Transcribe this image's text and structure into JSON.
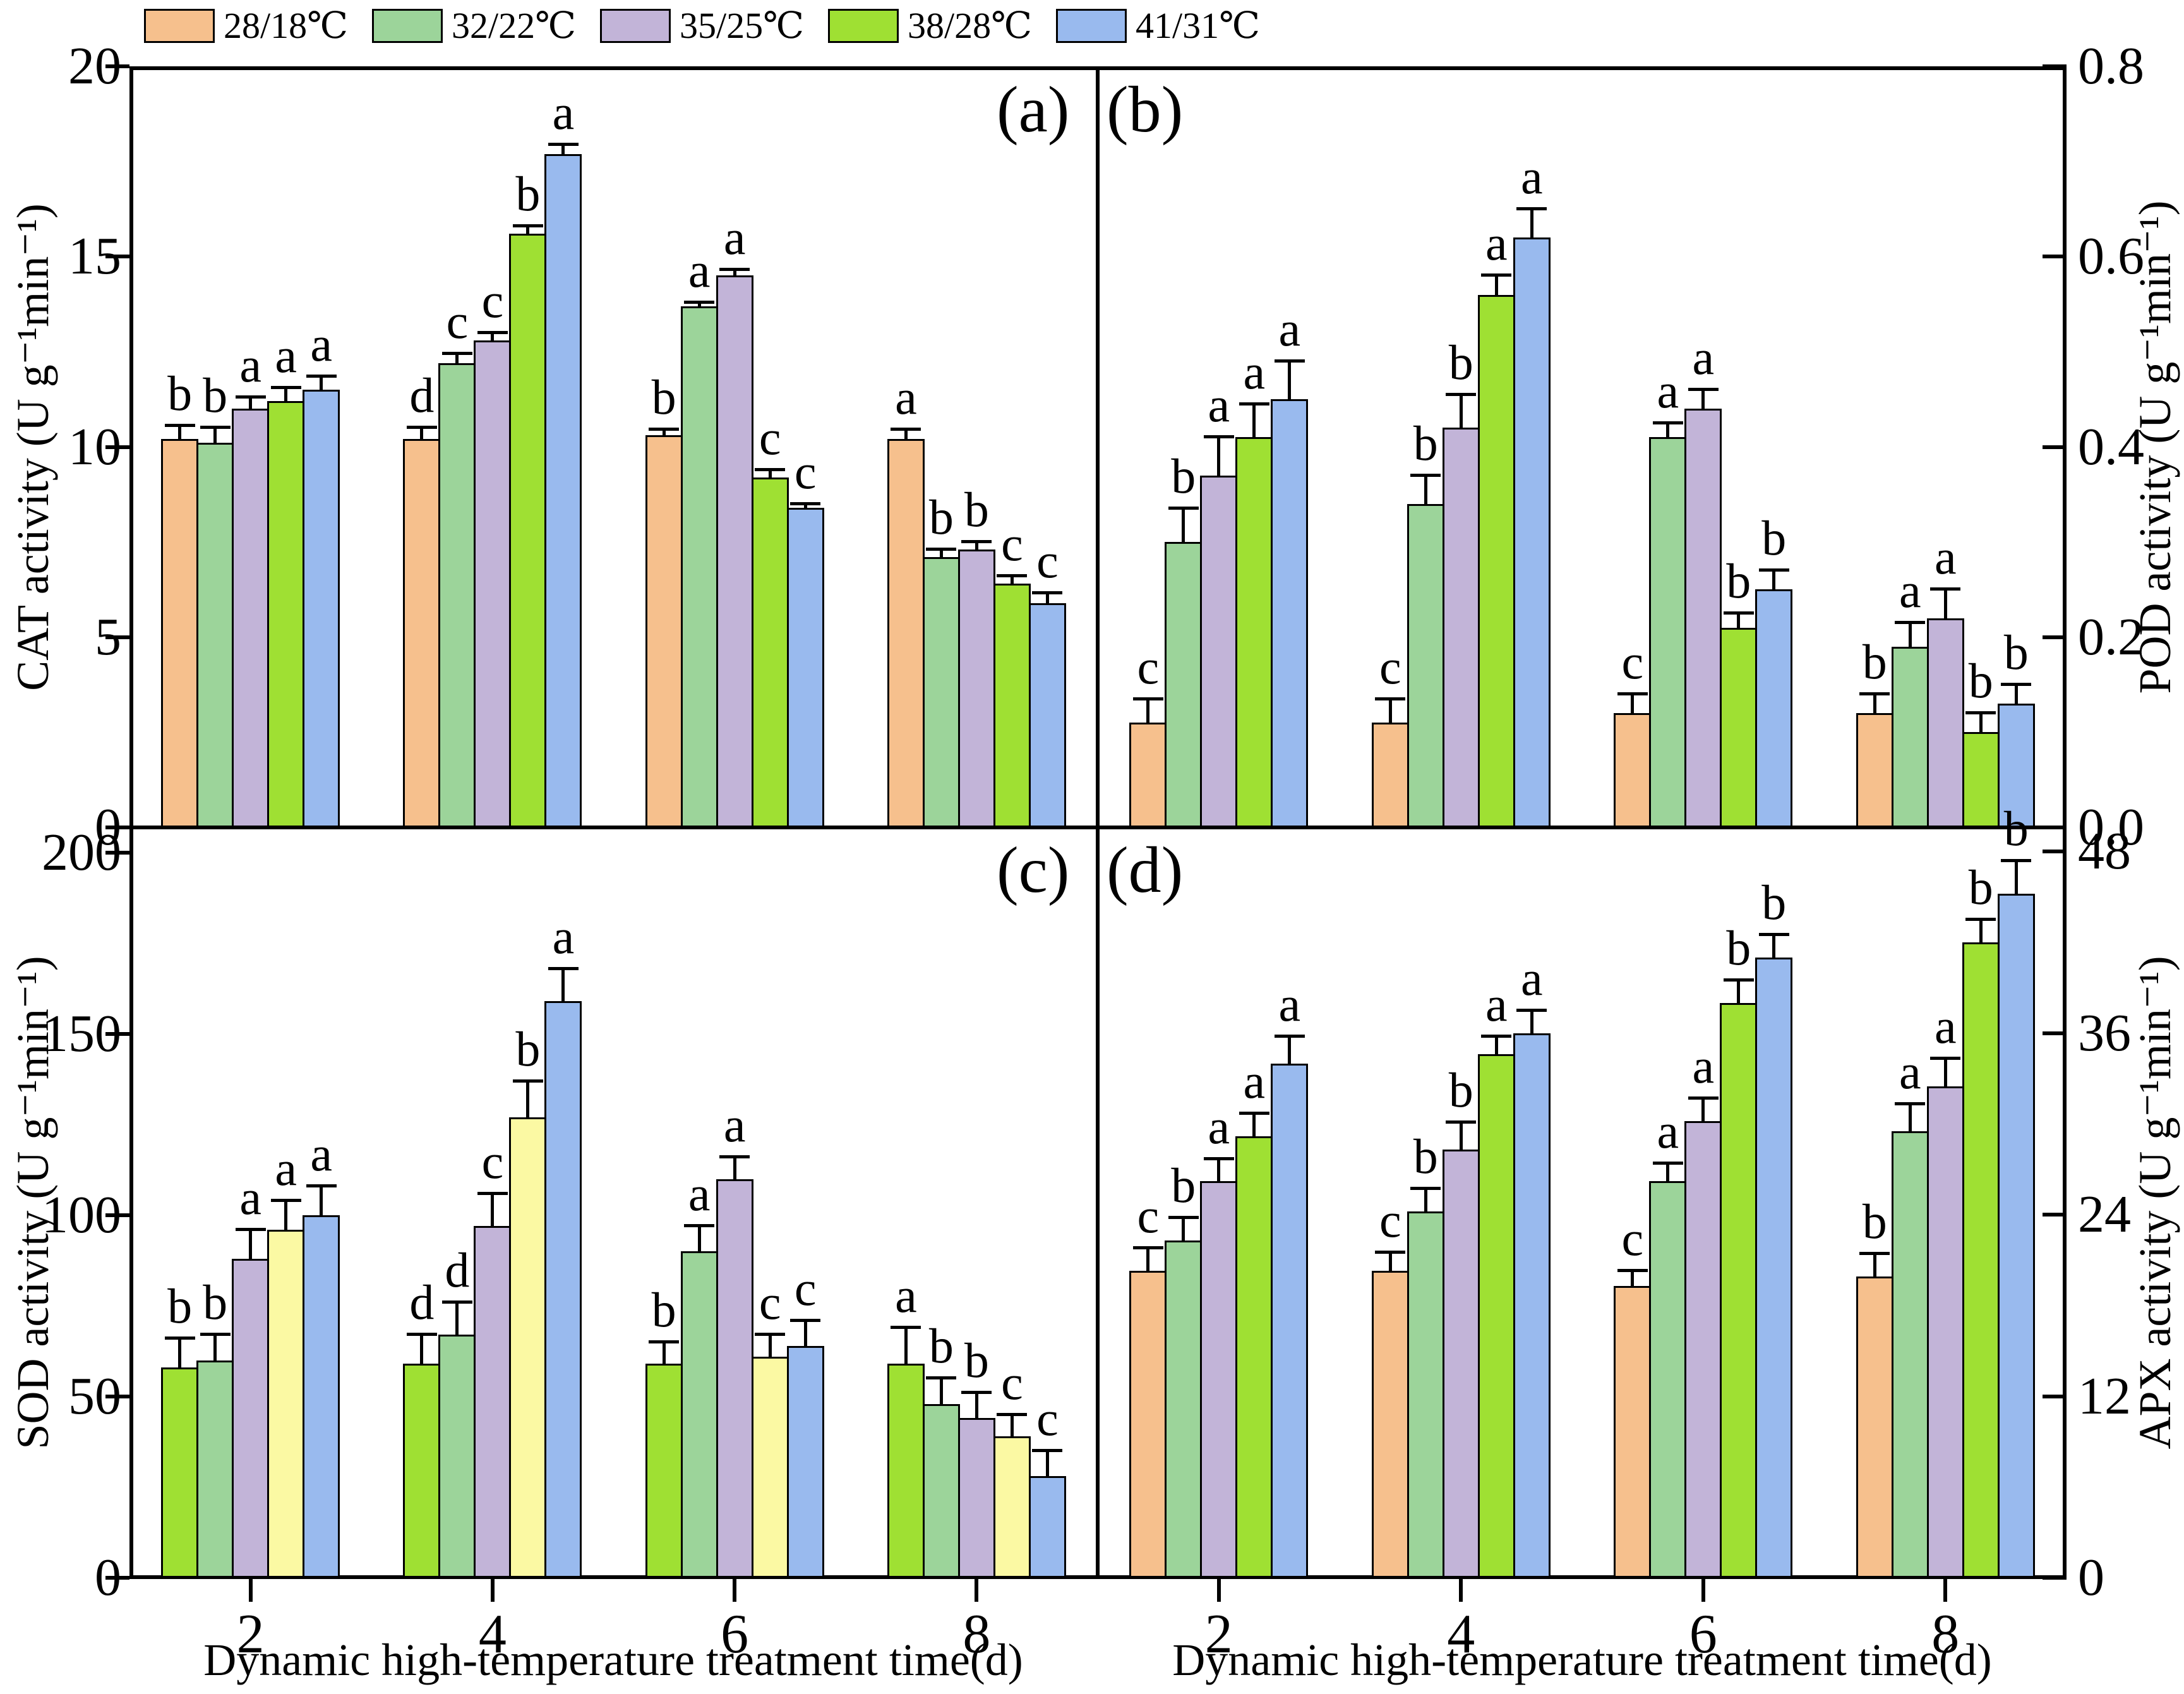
{
  "figure": {
    "x_axis_title": "Dynamic high-temperature treatment time(d)",
    "x_tick_labels": [
      "2",
      "4",
      "6",
      "8"
    ],
    "background_color": "#FFFFFF",
    "frame_color": "#000000"
  },
  "legend": {
    "position": "top-left",
    "items": [
      {
        "label": "28/18℃",
        "color": "#F6C08D"
      },
      {
        "label": "32/22℃",
        "color": "#9CD49A"
      },
      {
        "label": "35/25℃",
        "color": "#C2B4D8"
      },
      {
        "label": "38/28℃",
        "color": "#9FE033"
      },
      {
        "label": "41/31℃",
        "color": "#99BAEE"
      }
    ]
  },
  "chart_data": [
    {
      "type": "bar",
      "panel": "a",
      "title": "(a)",
      "ylabel": "CAT activity (U g⁻¹min⁻¹)",
      "xlabel": "Dynamic high-temperature treatment time(d)",
      "axis_side": "left",
      "ylim": [
        0,
        20
      ],
      "draw_max": 20,
      "yticks": [
        0,
        5,
        10,
        15,
        20
      ],
      "ytick_labels": [
        "0",
        "5",
        "10",
        "15",
        "20"
      ],
      "categories": [
        "2",
        "4",
        "6",
        "8"
      ],
      "grid": false,
      "series": [
        {
          "name": "28/18℃",
          "color": "#F6C08D",
          "values": [
            10.2,
            10.2,
            10.3,
            10.2
          ],
          "errors": [
            0.35,
            0.3,
            0.15,
            0.25
          ],
          "letters": [
            "b",
            "d",
            "b",
            "a"
          ]
        },
        {
          "name": "32/22℃",
          "color": "#9CD49A",
          "values": [
            10.1,
            12.2,
            13.7,
            7.1
          ],
          "errors": [
            0.4,
            0.25,
            0.1,
            0.2
          ],
          "letters": [
            "b",
            "c",
            "a",
            "b"
          ]
        },
        {
          "name": "35/25℃",
          "color": "#C2B4D8",
          "values": [
            11.0,
            12.8,
            14.5,
            7.3
          ],
          "errors": [
            0.3,
            0.2,
            0.15,
            0.2
          ],
          "letters": [
            "a",
            "c",
            "a",
            "b"
          ]
        },
        {
          "name": "38/28℃",
          "color": "#9FE033",
          "values": [
            11.2,
            15.6,
            9.2,
            6.4
          ],
          "errors": [
            0.35,
            0.2,
            0.2,
            0.2
          ],
          "letters": [
            "a",
            "b",
            "c",
            "c"
          ]
        },
        {
          "name": "41/31℃",
          "color": "#99BAEE",
          "values": [
            11.5,
            17.7,
            8.4,
            5.9
          ],
          "errors": [
            0.35,
            0.25,
            0.1,
            0.25
          ],
          "letters": [
            "a",
            "a",
            "c",
            "c"
          ]
        }
      ]
    },
    {
      "type": "bar",
      "panel": "b",
      "title": "(b)",
      "ylabel": "POD activity (U g⁻¹min⁻¹)",
      "xlabel": "Dynamic high-temperature treatment time(d)",
      "axis_side": "right",
      "ylim": [
        0,
        0.8
      ],
      "draw_max": 0.8,
      "yticks": [
        0,
        0.2,
        0.4,
        0.6,
        0.8
      ],
      "ytick_labels": [
        "0.0",
        "0.2",
        "0.4",
        "0.6",
        "0.8"
      ],
      "categories": [
        "2",
        "4",
        "6",
        "8"
      ],
      "grid": false,
      "series": [
        {
          "name": "28/18℃",
          "color": "#F6C08D",
          "values": [
            0.11,
            0.11,
            0.12,
            0.12
          ],
          "errors": [
            0.025,
            0.025,
            0.02,
            0.02
          ],
          "letters": [
            "c",
            "c",
            "c",
            "b"
          ]
        },
        {
          "name": "32/22℃",
          "color": "#9CD49A",
          "values": [
            0.3,
            0.34,
            0.41,
            0.19
          ],
          "errors": [
            0.035,
            0.03,
            0.015,
            0.025
          ],
          "letters": [
            "b",
            "b",
            "a",
            "a"
          ]
        },
        {
          "name": "35/25℃",
          "color": "#C2B4D8",
          "values": [
            0.37,
            0.42,
            0.44,
            0.22
          ],
          "errors": [
            0.04,
            0.035,
            0.02,
            0.03
          ],
          "letters": [
            "a",
            "b",
            "a",
            "a"
          ]
        },
        {
          "name": "38/28℃",
          "color": "#9FE033",
          "values": [
            0.41,
            0.56,
            0.21,
            0.1
          ],
          "errors": [
            0.035,
            0.02,
            0.015,
            0.02
          ],
          "letters": [
            "a",
            "a",
            "b",
            "b"
          ]
        },
        {
          "name": "41/31℃",
          "color": "#99BAEE",
          "values": [
            0.45,
            0.62,
            0.25,
            0.13
          ],
          "errors": [
            0.04,
            0.03,
            0.02,
            0.02
          ],
          "letters": [
            "a",
            "a",
            "b",
            "b"
          ]
        }
      ]
    },
    {
      "type": "bar",
      "panel": "c",
      "title": "(c)",
      "ylabel": "SOD activity (U g⁻¹min⁻¹)",
      "xlabel": "Dynamic high-temperature treatment time(d)",
      "axis_side": "left",
      "ylim": [
        0,
        200
      ],
      "draw_max": 207,
      "yticks": [
        0,
        50,
        100,
        150,
        200
      ],
      "ytick_labels": [
        "0",
        "50",
        "100",
        "150",
        "200"
      ],
      "categories": [
        "2",
        "4",
        "6",
        "8"
      ],
      "grid": false,
      "note": "bar fill colors differ from legend in this panel",
      "series": [
        {
          "name": "28/18℃",
          "color": "#9FE033",
          "values": [
            58,
            59,
            59,
            59
          ],
          "errors": [
            8,
            8,
            6,
            10
          ],
          "letters": [
            "b",
            "d",
            "b",
            "a"
          ]
        },
        {
          "name": "32/22℃",
          "color": "#9CD49A",
          "values": [
            60,
            67,
            90,
            48
          ],
          "errors": [
            7,
            9,
            7,
            7
          ],
          "letters": [
            "b",
            "d",
            "a",
            "b"
          ]
        },
        {
          "name": "35/25℃",
          "color": "#C2B4D8",
          "values": [
            88,
            97,
            110,
            44
          ],
          "errors": [
            8,
            9,
            6,
            7
          ],
          "letters": [
            "a",
            "c",
            "a",
            "b"
          ]
        },
        {
          "name": "38/28℃",
          "color": "#FBF9A3",
          "values": [
            96,
            127,
            61,
            39
          ],
          "errors": [
            8,
            10,
            6,
            6
          ],
          "letters": [
            "a",
            "b",
            "c",
            "c"
          ]
        },
        {
          "name": "41/31℃",
          "color": "#99BAEE",
          "values": [
            100,
            159,
            64,
            28
          ],
          "errors": [
            8,
            9,
            7,
            7
          ],
          "letters": [
            "a",
            "a",
            "c",
            "c"
          ]
        }
      ]
    },
    {
      "type": "bar",
      "panel": "d",
      "title": "(d)",
      "ylabel": "APX activity (U g⁻¹min⁻¹)",
      "xlabel": "Dynamic high-temperature treatment time(d)",
      "axis_side": "right",
      "ylim": [
        0,
        48
      ],
      "draw_max": 49.6,
      "yticks": [
        0,
        12,
        24,
        36,
        48
      ],
      "ytick_labels": [
        "0",
        "12",
        "24",
        "36",
        "48"
      ],
      "categories": [
        "2",
        "4",
        "6",
        "8"
      ],
      "grid": false,
      "series": [
        {
          "name": "28/18℃",
          "color": "#F6C08D",
          "values": [
            20.3,
            20.3,
            19.3,
            19.9
          ],
          "errors": [
            1.5,
            1.2,
            1.0,
            1.5
          ],
          "letters": [
            "c",
            "c",
            "c",
            "b"
          ]
        },
        {
          "name": "32/22℃",
          "color": "#9CD49A",
          "values": [
            22.3,
            24.2,
            26.2,
            29.5
          ],
          "errors": [
            1.5,
            1.5,
            1.2,
            1.8
          ],
          "letters": [
            "b",
            "b",
            "a",
            "a"
          ]
        },
        {
          "name": "35/25℃",
          "color": "#C2B4D8",
          "values": [
            26.2,
            28.3,
            30.2,
            32.5
          ],
          "errors": [
            1.5,
            1.8,
            1.5,
            1.8
          ],
          "letters": [
            "a",
            "b",
            "a",
            "a"
          ]
        },
        {
          "name": "38/28℃",
          "color": "#9FE033",
          "values": [
            29.2,
            34.6,
            38.0,
            42.0
          ],
          "errors": [
            1.5,
            1.2,
            1.5,
            1.5
          ],
          "letters": [
            "a",
            "a",
            "b",
            "b"
          ]
        },
        {
          "name": "41/31℃",
          "color": "#99BAEE",
          "values": [
            34.0,
            36.0,
            41.0,
            45.2
          ],
          "errors": [
            1.8,
            1.5,
            1.5,
            2.2
          ],
          "letters": [
            "a",
            "a",
            "b",
            "b"
          ]
        }
      ]
    }
  ]
}
